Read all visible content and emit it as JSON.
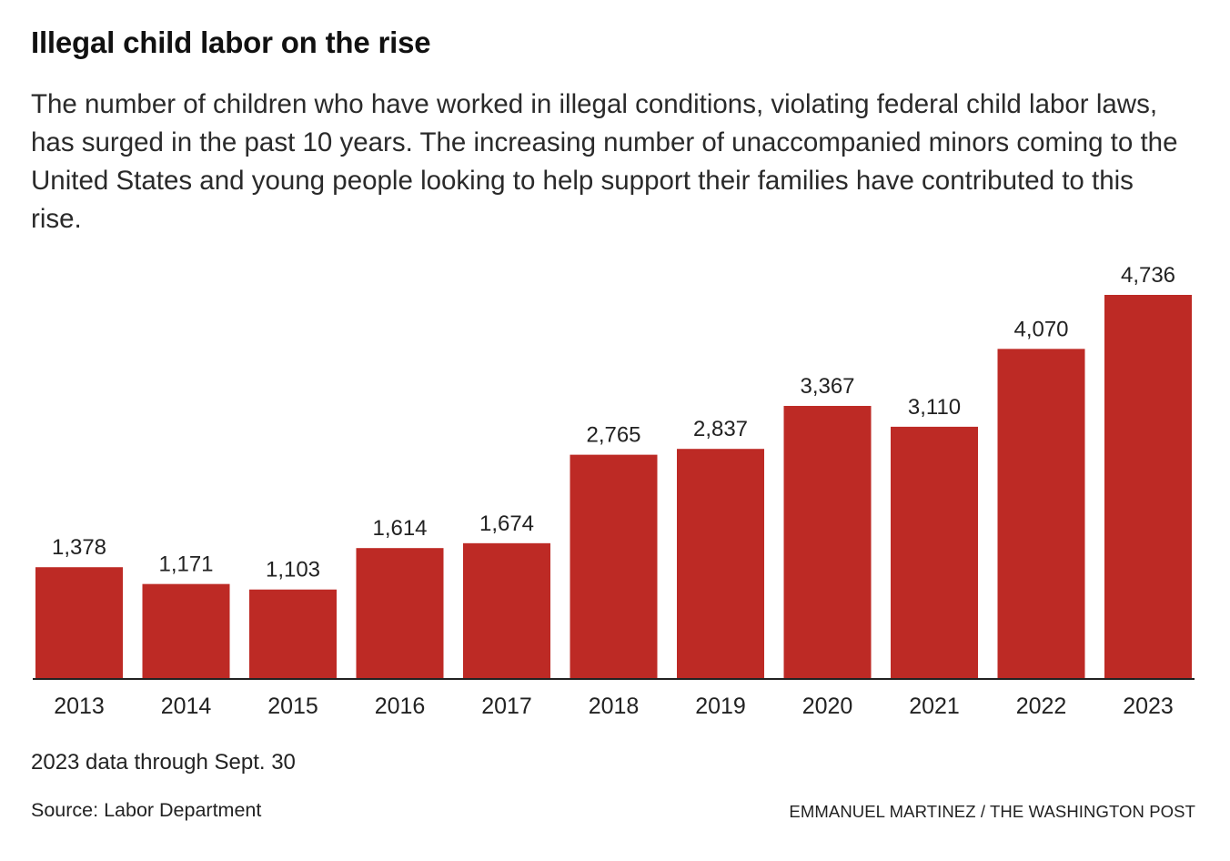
{
  "chart_data": {
    "type": "bar",
    "title": "Illegal child labor on the rise",
    "subtitle": "The number of children who have worked in illegal conditions, violating federal child labor laws, has surged in the past 10 years. The increasing number of unaccompanied minors coming to the United States and young people looking to help support their families have contributed to this rise.",
    "categories": [
      "2013",
      "2014",
      "2015",
      "2016",
      "2017",
      "2018",
      "2019",
      "2020",
      "2021",
      "2022",
      "2023"
    ],
    "values": [
      1378,
      1171,
      1103,
      1614,
      1674,
      2765,
      2837,
      3367,
      3110,
      4070,
      4736
    ],
    "value_labels": [
      "1,378",
      "1,171",
      "1,103",
      "1,614",
      "1,674",
      "2,765",
      "2,837",
      "3,367",
      "3,110",
      "4,070",
      "4,736"
    ],
    "xlabel": "",
    "ylabel": "",
    "ylim": [
      0,
      4736
    ],
    "grid": false,
    "colors": {
      "bar": "#bd2a25",
      "axis": "#222222",
      "label": "#222222"
    }
  },
  "notes": {
    "footnote": "2023 data through Sept. 30",
    "source": "Source: Labor Department",
    "credit": "EMMANUEL MARTINEZ / THE WASHINGTON POST"
  }
}
